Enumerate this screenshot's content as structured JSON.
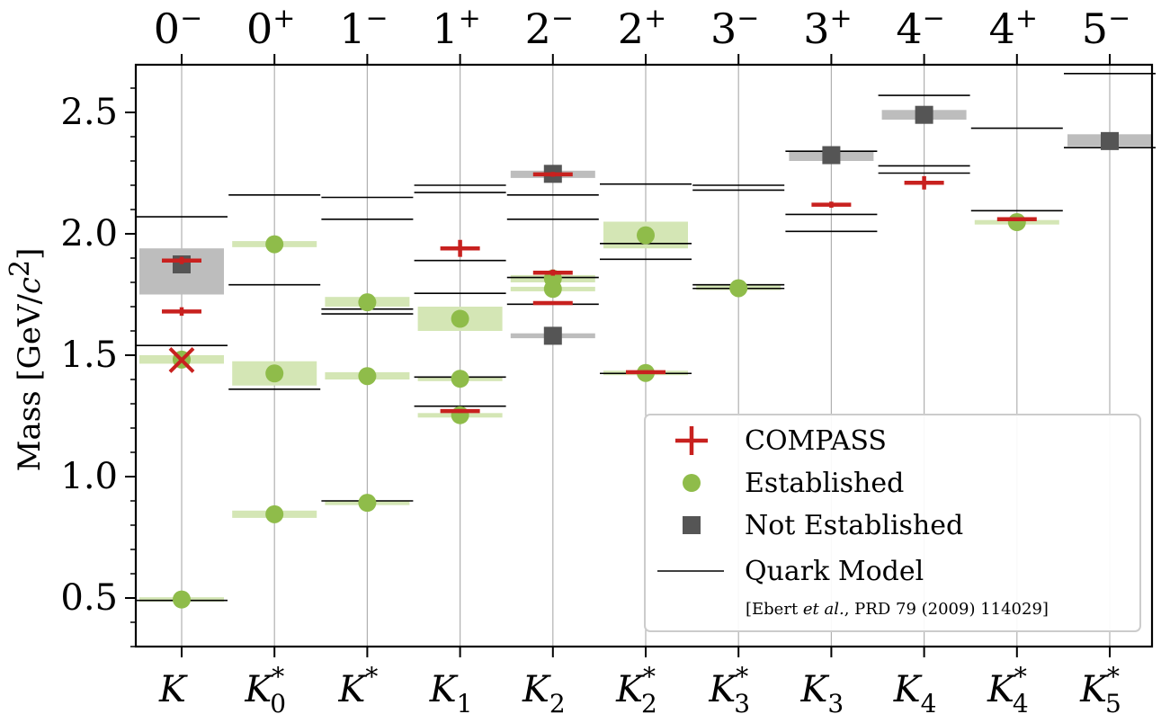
{
  "chart_data": {
    "type": "scatter",
    "ylabel": "Mass [GeV/c²]",
    "ylabel_parts": {
      "main": "Mass [GeV/",
      "var": "c",
      "sup": "2",
      "close": "]"
    },
    "ylim": [
      0.3,
      2.7
    ],
    "yticks": [
      0.5,
      1.0,
      1.5,
      2.0,
      2.5
    ],
    "ytick_labels": [
      "0.5",
      "1.0",
      "1.5",
      "2.0",
      "2.5"
    ],
    "columns": [
      {
        "jp": "0",
        "parity": "−",
        "name": "K",
        "sub": "",
        "sup": ""
      },
      {
        "jp": "0",
        "parity": "+",
        "name": "K",
        "sub": "0",
        "sup": "*"
      },
      {
        "jp": "1",
        "parity": "−",
        "name": "K",
        "sub": "",
        "sup": "*"
      },
      {
        "jp": "1",
        "parity": "+",
        "name": "K",
        "sub": "1",
        "sup": ""
      },
      {
        "jp": "2",
        "parity": "−",
        "name": "K",
        "sub": "2",
        "sup": ""
      },
      {
        "jp": "2",
        "parity": "+",
        "name": "K",
        "sub": "2",
        "sup": "*"
      },
      {
        "jp": "3",
        "parity": "−",
        "name": "K",
        "sub": "3",
        "sup": "*"
      },
      {
        "jp": "3",
        "parity": "+",
        "name": "K",
        "sub": "3",
        "sup": ""
      },
      {
        "jp": "4",
        "parity": "−",
        "name": "K",
        "sub": "4",
        "sup": ""
      },
      {
        "jp": "4",
        "parity": "+",
        "name": "K",
        "sub": "4",
        "sup": "*"
      },
      {
        "jp": "5",
        "parity": "−",
        "name": "K",
        "sub": "5",
        "sup": "*"
      }
    ],
    "quark_model": [
      [
        0.49,
        1.54,
        2.07
      ],
      [
        1.36,
        1.79,
        2.16
      ],
      [
        0.9,
        1.67,
        1.69,
        2.06,
        2.15
      ],
      [
        1.29,
        1.41,
        1.755,
        1.89,
        2.17,
        2.2
      ],
      [
        1.71,
        1.82,
        2.06,
        2.16
      ],
      [
        1.425,
        1.895,
        1.96,
        2.205
      ],
      [
        1.775,
        1.79,
        2.18,
        2.2
      ],
      [
        2.01,
        2.08,
        2.34
      ],
      [
        2.25,
        2.28,
        2.57
      ],
      [
        2.095,
        2.435
      ],
      [
        2.355,
        2.66
      ]
    ],
    "established": [
      {
        "col": 0,
        "mass": 0.494,
        "band": [
          0.489,
          0.499
        ]
      },
      {
        "col": 0,
        "mass": 1.482,
        "band": [
          1.465,
          1.5
        ]
      },
      {
        "col": 1,
        "mass": 0.845,
        "band": [
          0.83,
          0.86
        ]
      },
      {
        "col": 1,
        "mass": 1.425,
        "band": [
          1.375,
          1.475
        ]
      },
      {
        "col": 1,
        "mass": 1.957,
        "band": [
          1.945,
          1.97
        ]
      },
      {
        "col": 2,
        "mass": 0.892,
        "band": [
          0.889,
          0.895
        ]
      },
      {
        "col": 2,
        "mass": 1.414,
        "band": [
          1.4,
          1.43
        ]
      },
      {
        "col": 2,
        "mass": 1.718,
        "band": [
          1.7,
          1.74
        ]
      },
      {
        "col": 3,
        "mass": 1.253,
        "band": [
          1.245,
          1.26
        ]
      },
      {
        "col": 3,
        "mass": 1.403,
        "band": [
          1.395,
          1.41
        ]
      },
      {
        "col": 3,
        "mass": 1.65,
        "band": [
          1.6,
          1.7
        ]
      },
      {
        "col": 4,
        "mass": 1.773,
        "band": [
          1.765,
          1.78
        ]
      },
      {
        "col": 4,
        "mass": 1.816,
        "band": [
          1.8,
          1.83
        ]
      },
      {
        "col": 5,
        "mass": 1.427,
        "band": [
          1.422,
          1.432
        ]
      },
      {
        "col": 5,
        "mass": 1.994,
        "band": [
          1.94,
          2.05
        ]
      },
      {
        "col": 6,
        "mass": 1.776,
        "band": [
          1.77,
          1.785
        ]
      },
      {
        "col": 9,
        "mass": 2.048,
        "band": [
          2.04,
          2.055
        ]
      }
    ],
    "not_established": [
      {
        "col": 0,
        "mass": 1.874,
        "band": [
          1.75,
          1.94
        ]
      },
      {
        "col": 4,
        "mass": 1.58,
        "band": [
          1.57,
          1.59
        ]
      },
      {
        "col": 4,
        "mass": 2.247,
        "band": [
          2.23,
          2.26
        ]
      },
      {
        "col": 7,
        "mass": 2.324,
        "band": [
          2.3,
          2.34
        ]
      },
      {
        "col": 8,
        "mass": 2.49,
        "band": [
          2.47,
          2.51
        ]
      },
      {
        "col": 10,
        "mass": 2.382,
        "band": [
          2.36,
          2.41
        ]
      }
    ],
    "compass": [
      {
        "col": 0,
        "mass": 1.89,
        "size": 0.03
      },
      {
        "col": 0,
        "mass": 1.68,
        "size": 0.035
      },
      {
        "col": 3,
        "mass": 1.27,
        "size": 0.01
      },
      {
        "col": 3,
        "mass": 1.94,
        "size": 0.07
      },
      {
        "col": 4,
        "mass": 1.715,
        "size": 0.01
      },
      {
        "col": 4,
        "mass": 1.84,
        "size": 0.025
      },
      {
        "col": 4,
        "mass": 2.245,
        "size": 0.02
      },
      {
        "col": 5,
        "mass": 1.43,
        "size": 0.01
      },
      {
        "col": 7,
        "mass": 2.12,
        "size": 0.025
      },
      {
        "col": 8,
        "mass": 2.21,
        "size": 0.055
      },
      {
        "col": 9,
        "mass": 2.06,
        "size": 0.01
      }
    ],
    "compass_cross": [
      {
        "col": 0,
        "mass": 1.48
      }
    ],
    "legend": {
      "placement": "lower-right",
      "entries": [
        "COMPASS",
        "Established",
        "Not Established",
        "Quark Model"
      ],
      "reference": {
        "pre": "[Ebert ",
        "italic": "et al.",
        "post": ", PRD 79 (2009) 114029]"
      }
    },
    "colors": {
      "compass": "#c8211f",
      "established": "#8fbc4a",
      "established_band": "#d4e6b5",
      "not_established": "#555555",
      "not_established_band": "#bdbdbd",
      "quark_model": "#000000",
      "gridline": "#b0b0b0"
    }
  }
}
